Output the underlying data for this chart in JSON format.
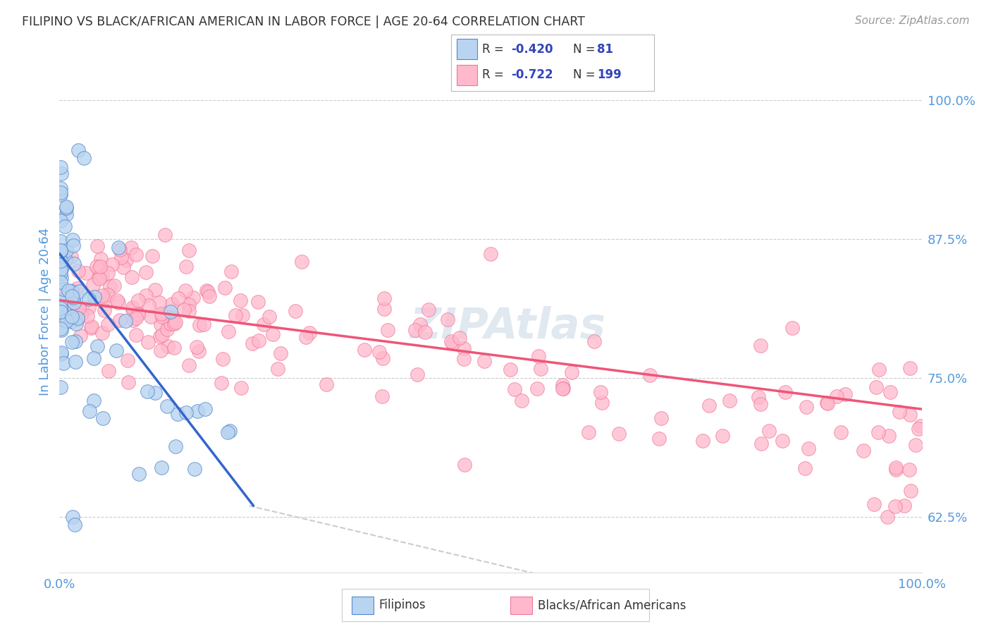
{
  "title": "FILIPINO VS BLACK/AFRICAN AMERICAN IN LABOR FORCE | AGE 20-64 CORRELATION CHART",
  "source": "Source: ZipAtlas.com",
  "ylabel": "In Labor Force | Age 20-64",
  "xlim": [
    0.0,
    1.0
  ],
  "ylim": [
    0.575,
    1.045
  ],
  "yticks": [
    0.625,
    0.75,
    0.875,
    1.0
  ],
  "ytick_labels": [
    "62.5%",
    "75.0%",
    "87.5%",
    "100.0%"
  ],
  "filipino_color": "#b8d4f0",
  "filipino_edge_color": "#5588cc",
  "black_color": "#ffb8cc",
  "black_edge_color": "#ee7799",
  "filipino_R": -0.42,
  "filipino_N": 81,
  "black_R": -0.722,
  "black_N": 199,
  "title_color": "#333333",
  "axis_label_color": "#5599dd",
  "tick_label_color": "#5599dd",
  "background_color": "#ffffff",
  "grid_color": "#cccccc",
  "filipino_line_color": "#3366cc",
  "black_line_color": "#ee5577",
  "diagonal_color": "#cccccc",
  "watermark_color": "#e0e8f0"
}
